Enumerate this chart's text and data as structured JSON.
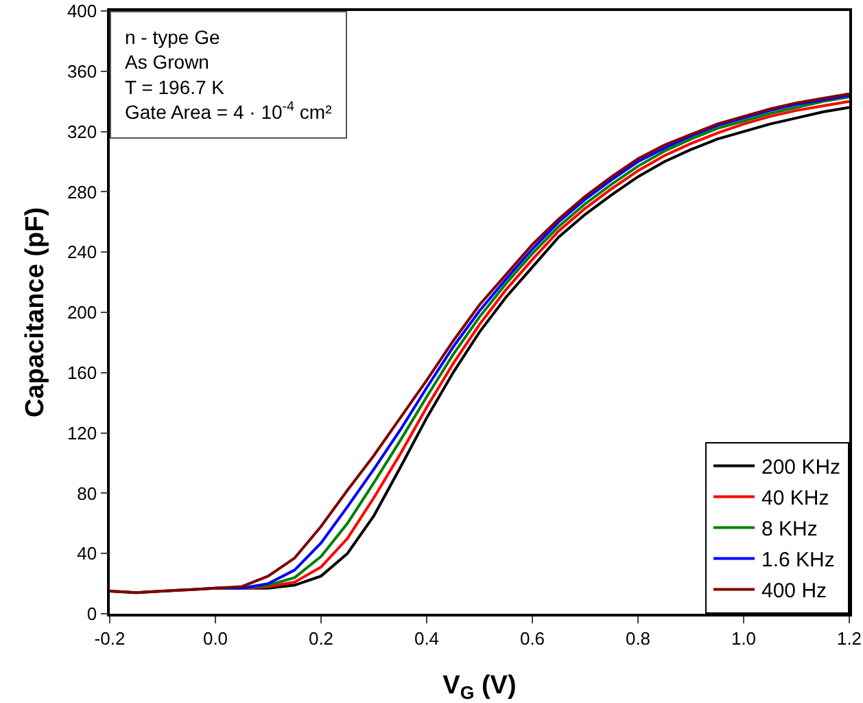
{
  "chart_data": {
    "type": "line",
    "xlabel": "V$_{G}$ (V)",
    "ylabel": "Capacitance (pF)",
    "annotations": [
      "n - type Ge",
      "As Grown",
      "T = 196.7 K",
      "Gate Area = 4 · 10$^{-4}$ cm²"
    ],
    "x": [
      -0.2,
      -0.15,
      -0.1,
      -0.05,
      0,
      0.05,
      0.1,
      0.15,
      0.2,
      0.25,
      0.3,
      0.35,
      0.4,
      0.45,
      0.5,
      0.55,
      0.6,
      0.65,
      0.7,
      0.75,
      0.8,
      0.85,
      0.9,
      0.95,
      1.0,
      1.05,
      1.1,
      1.15,
      1.2
    ],
    "series": [
      {
        "name": "200 KHz",
        "color": "#000000",
        "values": [
          15,
          14,
          15,
          16,
          17,
          17,
          17,
          19,
          25,
          40,
          65,
          97,
          130,
          160,
          187,
          210,
          230,
          250,
          265,
          278,
          290,
          300,
          308,
          315,
          320,
          325,
          329,
          333,
          336
        ]
      },
      {
        "name": "40 KHz",
        "color": "#ff0000",
        "values": [
          null,
          null,
          null,
          null,
          17,
          17,
          18,
          21,
          31,
          50,
          77,
          106,
          137,
          166,
          192,
          215,
          235,
          254,
          269,
          282,
          294,
          304,
          312,
          319,
          325,
          330,
          334,
          337,
          340
        ]
      },
      {
        "name": "8 KHz",
        "color": "#008000",
        "values": [
          null,
          null,
          null,
          null,
          17,
          17,
          19,
          24,
          38,
          60,
          87,
          115,
          144,
          172,
          197,
          219,
          239,
          257,
          272,
          285,
          297,
          307,
          315,
          322,
          327,
          332,
          336,
          340,
          343
        ]
      },
      {
        "name": "1.6 KHz",
        "color": "#0000ff",
        "values": [
          null,
          null,
          null,
          null,
          17,
          17,
          20,
          29,
          47,
          71,
          96,
          122,
          150,
          177,
          201,
          222,
          242,
          260,
          275,
          288,
          300,
          309,
          317,
          324,
          329,
          334,
          338,
          341,
          344
        ]
      },
      {
        "name": "400 Hz",
        "color": "#800000",
        "values": [
          15,
          14,
          15,
          16,
          17,
          18,
          25,
          37,
          58,
          82,
          105,
          130,
          155,
          181,
          205,
          225,
          245,
          262,
          277,
          290,
          302,
          311,
          318,
          325,
          330,
          335,
          339,
          342,
          345
        ]
      }
    ],
    "xlim": [
      -0.2,
      1.2
    ],
    "ylim": [
      0,
      400
    ],
    "xticks": [
      -0.2,
      {
        "value": 0,
        "label": "0.0"
      },
      0.2,
      0.4,
      0.6,
      0.8,
      {
        "value": 1,
        "label": "1.0"
      },
      1.2
    ],
    "yticks": [
      0,
      40,
      80,
      120,
      160,
      200,
      240,
      280,
      320,
      360,
      400
    ],
    "grid": false,
    "legend": "bottom right",
    "marker": "none",
    "line_style": "solid"
  }
}
